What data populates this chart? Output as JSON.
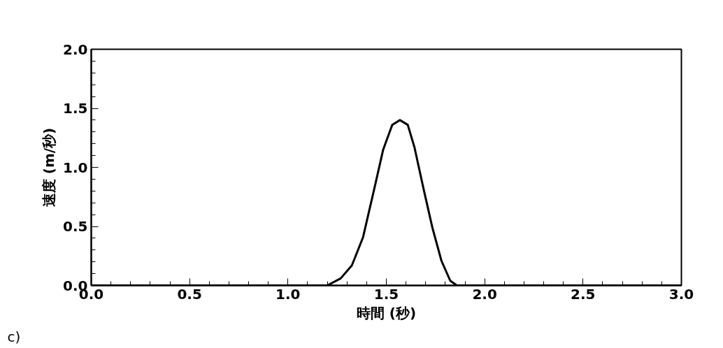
{
  "chart_data": {
    "type": "line",
    "xlabel": "時間 (秒)",
    "ylabel": "速度 (m/秒)",
    "annotations": [
      "c)"
    ],
    "x": [
      0.0,
      0.5,
      1.0,
      1.2,
      1.268,
      1.325,
      1.382,
      1.439,
      1.484,
      1.53,
      1.569,
      1.609,
      1.643,
      1.689,
      1.734,
      1.78,
      1.825,
      1.859,
      2.0,
      2.5,
      3.0
    ],
    "series": [
      {
        "color": "#000000",
        "values": [
          0.0,
          0.0,
          0.0,
          0.0,
          0.06,
          0.17,
          0.41,
          0.82,
          1.15,
          1.36,
          1.4,
          1.36,
          1.17,
          0.82,
          0.49,
          0.21,
          0.04,
          0.0,
          0.0,
          0.0,
          0.0
        ]
      }
    ],
    "xlim": [
      0.0,
      3.0
    ],
    "ylim": [
      0.0,
      2.0
    ],
    "xticks": [
      {
        "value": 0,
        "label": "0.0"
      },
      {
        "value": 0.5,
        "label": "0.5"
      },
      {
        "value": 1,
        "label": "1.0"
      },
      {
        "value": 1.5,
        "label": "1.5"
      },
      {
        "value": 2,
        "label": "2.0"
      },
      {
        "value": 2.5,
        "label": "2.5"
      },
      {
        "value": 3,
        "label": "3.0"
      }
    ],
    "yticks": [
      {
        "value": 0,
        "label": "0.0"
      },
      {
        "value": 0.5,
        "label": "0.5"
      },
      {
        "value": 1,
        "label": "1.0"
      },
      {
        "value": 1.5,
        "label": "1.5"
      },
      {
        "value": 2,
        "label": "2.0"
      }
    ],
    "grid": false,
    "marker": "none",
    "line_style": "solid"
  }
}
